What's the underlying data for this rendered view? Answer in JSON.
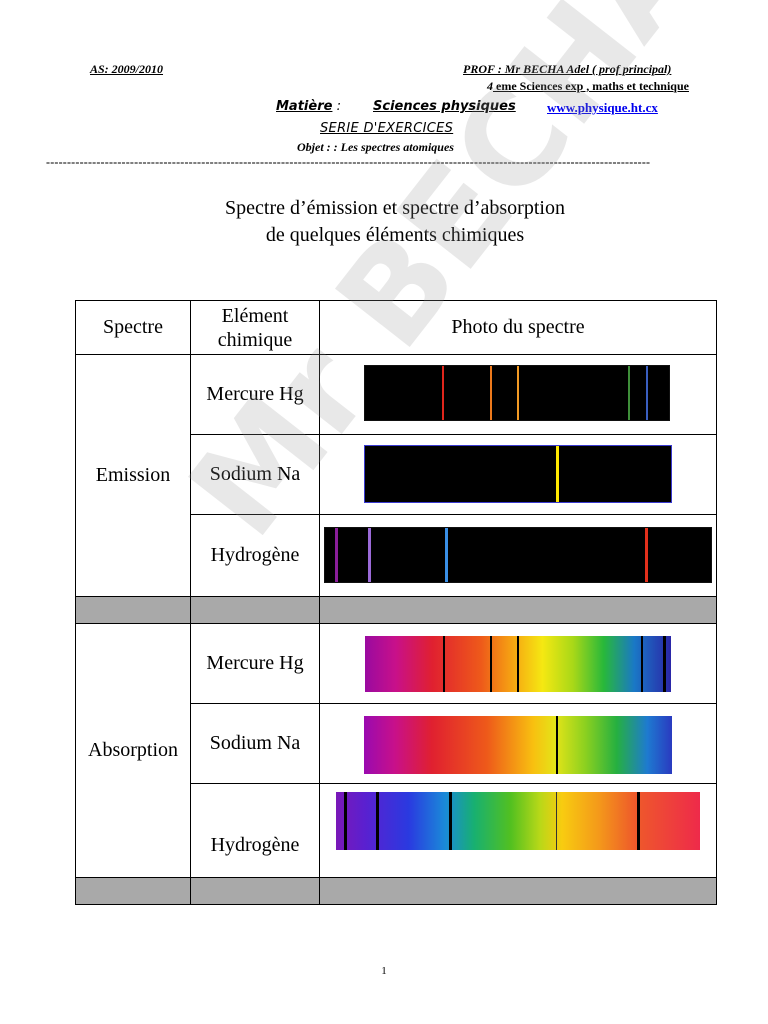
{
  "header": {
    "year": "AS: 2009/2010",
    "prof": "PROF : Mr BECHA Adel ( prof principal)",
    "level_num": "4",
    "level_rest": " eme Sciences exp , maths et technique",
    "matiere_label": "Matière",
    "matiere_colon": " :",
    "matiere_value": "Sciences physiques",
    "website": "www.physique.ht.cx",
    "serie": "SERIE D'EXERCICES",
    "objet": "Objet : : Les spectres atomiques",
    "divider": "------------------------------------------------------------------------------------------------------------------------------------------------"
  },
  "title_line1": "Spectre d’émission et spectre d’absorption",
  "title_line2": "de quelques éléments chimiques",
  "table": {
    "head_spectre": "Spectre",
    "head_element_1": "Elément",
    "head_element_2": "chimique",
    "head_photo": "Photo du spectre",
    "emission_label": "Emission",
    "absorption_label": "Absorption",
    "em_mercure": "Mercure Hg",
    "em_sodium": "Sodium Na",
    "em_hydrogene": "Hydrogène",
    "ab_mercure": "Mercure Hg",
    "ab_sodium": "Sodium Na",
    "ab_hydrogene": "Hydrogène"
  },
  "watermark": "Mr BECHA ADEL",
  "page_number": "1"
}
